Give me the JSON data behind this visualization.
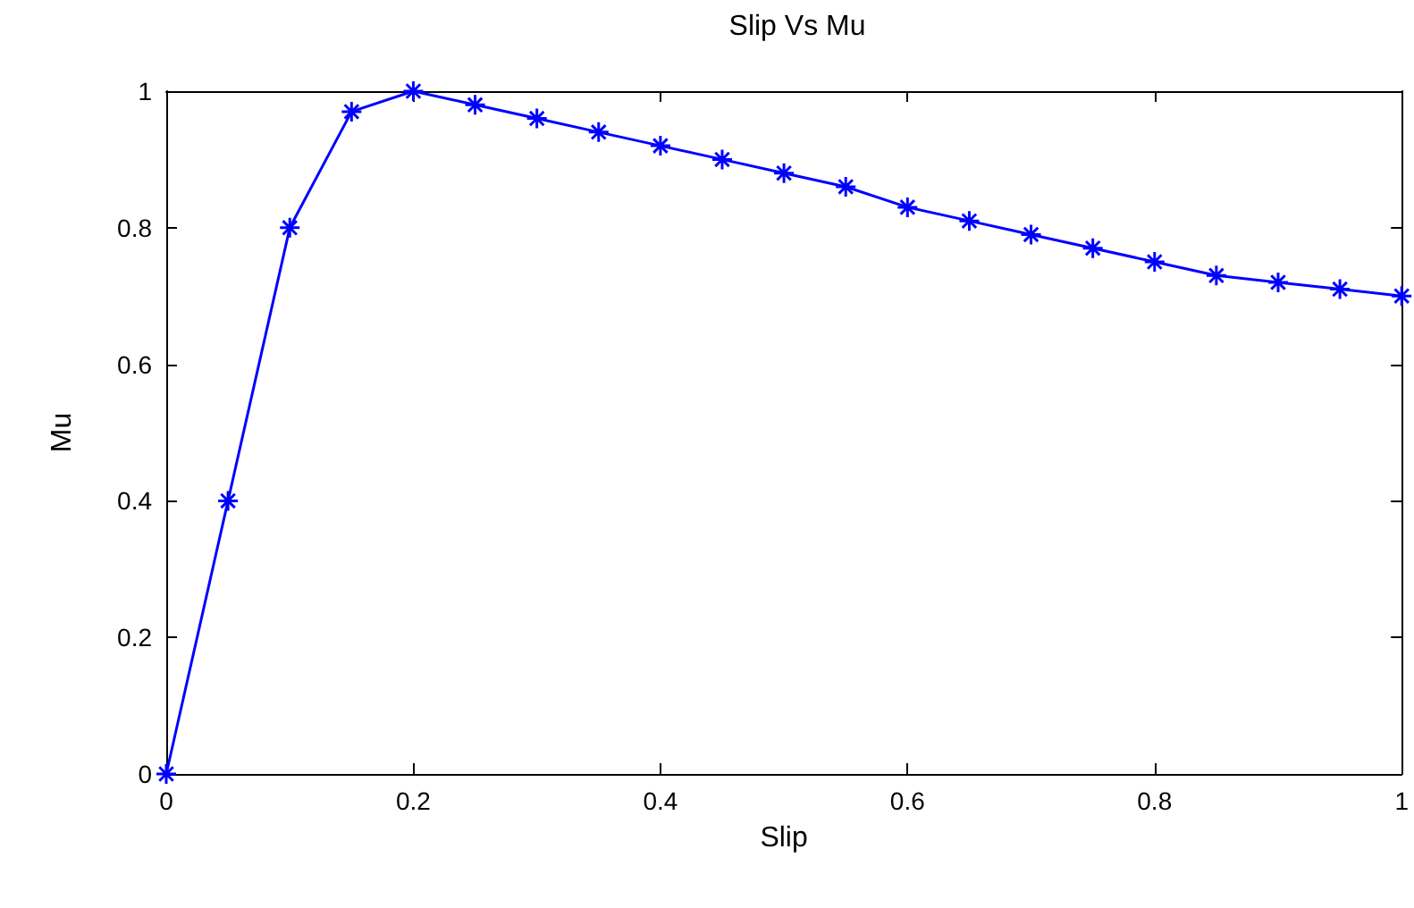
{
  "chart_data": {
    "type": "line",
    "title": "Slip Vs Mu",
    "xlabel": "Slip",
    "ylabel": "Mu",
    "x": [
      0,
      0.05,
      0.1,
      0.15,
      0.2,
      0.25,
      0.3,
      0.35,
      0.4,
      0.45,
      0.5,
      0.55,
      0.6,
      0.65,
      0.7,
      0.75,
      0.8,
      0.85,
      0.9,
      0.95,
      1
    ],
    "series": [
      {
        "color": "#0000ff",
        "values": [
          0,
          0.4,
          0.8,
          0.97,
          1.0,
          0.98,
          0.96,
          0.94,
          0.92,
          0.9,
          0.88,
          0.86,
          0.83,
          0.81,
          0.79,
          0.77,
          0.75,
          0.73,
          0.72,
          0.71,
          0.7
        ]
      }
    ],
    "xlim": [
      0,
      1
    ],
    "xticks": [
      0,
      0.2,
      0.4,
      0.6,
      0.8,
      1
    ],
    "ylim": [
      0,
      1
    ],
    "yticks": [
      0,
      0.2,
      0.4,
      0.6,
      0.8,
      1
    ],
    "grid": false,
    "marker": "cross",
    "line_style": "solid"
  }
}
